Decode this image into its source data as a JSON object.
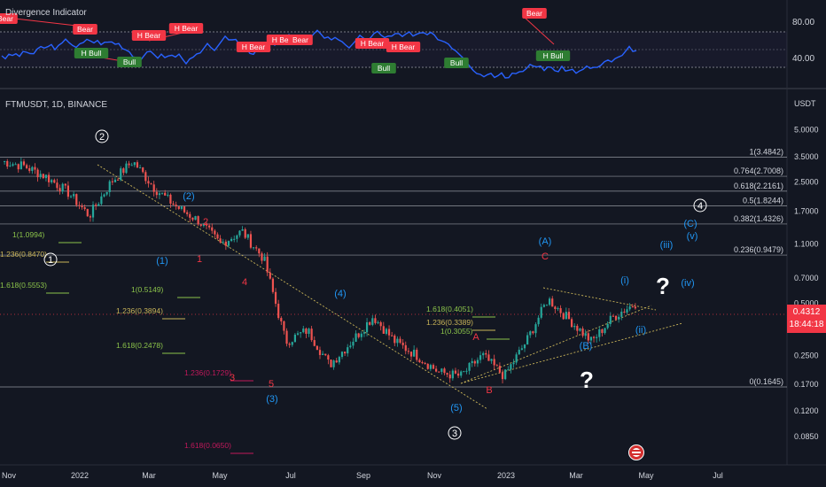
{
  "indicator": {
    "title": "Divergence Indicator",
    "levels": [
      "80.00",
      "40.00"
    ],
    "tags": [
      {
        "text": "Bear",
        "type": "bear"
      },
      {
        "text": "Bear",
        "type": "bear"
      },
      {
        "text": "H Bull",
        "type": "bull"
      },
      {
        "text": "Bull",
        "type": "bull"
      },
      {
        "text": "H Bear",
        "type": "bear"
      },
      {
        "text": "H Bear",
        "type": "bear"
      },
      {
        "text": "H Bear",
        "type": "bear"
      },
      {
        "text": "H Bear",
        "type": "bear"
      },
      {
        "text": "Bear",
        "type": "bear"
      },
      {
        "text": "H Bear",
        "type": "bear"
      },
      {
        "text": "H Bear",
        "type": "bear"
      },
      {
        "text": "Bull",
        "type": "bull"
      },
      {
        "text": "Bull",
        "type": "bull"
      },
      {
        "text": "Bear",
        "type": "bear"
      },
      {
        "text": "H Bull",
        "type": "bull"
      }
    ]
  },
  "main": {
    "title": "FTMUSDT, 1D, BINANCE",
    "currency": "USDT",
    "price_ticks": [
      "5.0000",
      "3.5000",
      "2.5000",
      "1.7000",
      "1.1000",
      "0.7000",
      "0.5000",
      "0.2500",
      "0.1700",
      "0.1200",
      "0.0850"
    ],
    "time_ticks": [
      "Nov",
      "2022",
      "Mar",
      "May",
      "Jul",
      "Sep",
      "Nov",
      "2023",
      "Mar",
      "May",
      "Jul"
    ],
    "current_price": "0.4312",
    "countdown": "18:44:18",
    "colors": {
      "bg": "#131722",
      "up": "#26a69a",
      "down": "#ef5350",
      "rsi": "#2962ff",
      "bear": "#f23645",
      "bull": "#2e7d32",
      "fib": "#c9b458",
      "wave_blue": "#2962ff",
      "wave_red": "#f23645",
      "wave_white": "#ffffff"
    }
  },
  "chart_data": {
    "type": "candlestick",
    "title": "FTMUSDT, 1D, BINANCE",
    "x_range": [
      "2021-11",
      "2023-07"
    ],
    "y_scale": "log",
    "series": [
      {
        "name": "FTMUSDT",
        "values": [
          3.3,
          3.1,
          2.7,
          2.2,
          1.6,
          2.5,
          3.3,
          2.3,
          1.8,
          1.5,
          1.1,
          1.3,
          0.9,
          0.3,
          0.35,
          0.22,
          0.3,
          0.42,
          0.3,
          0.25,
          0.2,
          0.19,
          0.25,
          0.19,
          0.3,
          0.53,
          0.4,
          0.3,
          0.42,
          0.5
        ]
      }
    ],
    "fib_levels": [
      {
        "label": "1(3.4842)",
        "value": 3.4842
      },
      {
        "label": "0.764(2.7008)",
        "value": 2.7008
      },
      {
        "label": "0.618(2.2161)",
        "value": 2.2161
      },
      {
        "label": "0.5(1.8244)",
        "value": 1.8244
      },
      {
        "label": "0.382(1.4326)",
        "value": 1.4326
      },
      {
        "label": "0.236(0.9479)",
        "value": 0.9479
      },
      {
        "label": "0(0.1645)",
        "value": 0.1645
      }
    ],
    "extension_labels": [
      "1(1.0994)",
      "1.236(0.8470)",
      "1.618(0.5553)",
      "1(0.5149)",
      "1.236(0.3894)",
      "1.618(0.2478)",
      "1.236(0.1729)",
      "1.618(0.0650)",
      "1.618(0.4051)",
      "1.236(0.3389)",
      "1(0.3055)"
    ],
    "wave_labels": [
      "1",
      "2",
      "3",
      "4",
      "(1)",
      "(2)",
      "(3)",
      "(4)",
      "(5)",
      "(A)",
      "(B)",
      "(C)",
      "(i)",
      "(ii)",
      "(iii)",
      "(iv)",
      "(v)",
      "1",
      "2",
      "3",
      "4",
      "5",
      "A",
      "B",
      "C",
      "?",
      "?"
    ],
    "rsi_levels": [
      80,
      40
    ]
  }
}
